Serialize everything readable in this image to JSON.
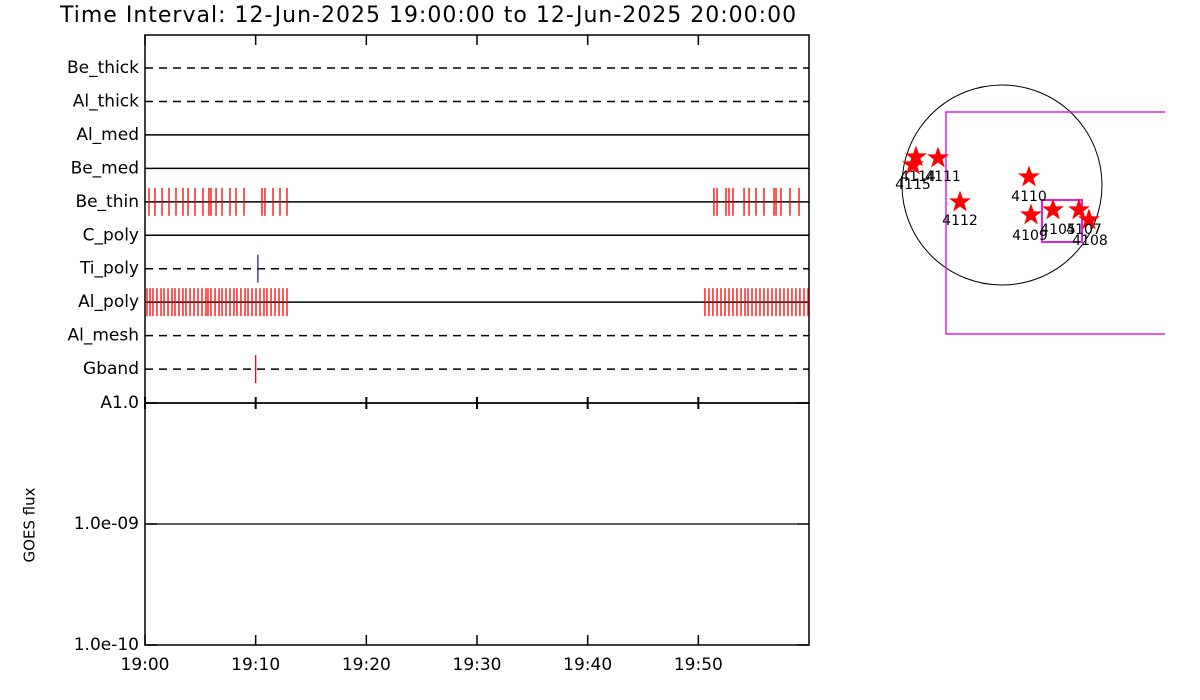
{
  "chart_data": [
    {
      "type": "timeline",
      "title": "Time Interval: 12-Jun-2025 19:00:00 to 12-Jun-2025 20:00:00",
      "xlim": [
        1140,
        1200
      ],
      "rows": [
        {
          "name": "Be_thick",
          "dashed": true,
          "color": "#ff0000",
          "events": []
        },
        {
          "name": "Al_thick",
          "dashed": true,
          "color": "#ff0000",
          "events": []
        },
        {
          "name": "Al_med",
          "dashed": false,
          "color": "#ff0000",
          "events": []
        },
        {
          "name": "Be_med",
          "dashed": false,
          "color": "#ff0000",
          "events": []
        },
        {
          "name": "Be_thin",
          "dashed": false,
          "color": "#ff0000",
          "events": [
            1140.36,
            1140.9,
            1141.54,
            1142.17,
            1142.8,
            1143.43,
            1143.89,
            1144.52,
            1145.24,
            1145.78,
            1145.96,
            1146.42,
            1146.96,
            1147.68,
            1148.22,
            1148.95,
            1150.57,
            1150.84,
            1151.57,
            1152.2,
            1152.83,
            1191.41,
            1191.69,
            1192.5,
            1192.77,
            1193.13,
            1194.13,
            1194.58,
            1195.21,
            1195.93,
            1196.84,
            1197.02,
            1197.47,
            1198.28,
            1199.1
          ]
        },
        {
          "name": "C_poly",
          "dashed": false,
          "color": "#ff0000",
          "events": []
        },
        {
          "name": "Ti_poly",
          "dashed": true,
          "color": "#2222aa",
          "events": [
            1150.2
          ]
        },
        {
          "name": "Al_poly",
          "dashed": false,
          "color": "#ff0000",
          "events": [
            1140.18,
            1140.45,
            1140.72,
            1141.08,
            1141.45,
            1141.72,
            1142.08,
            1142.44,
            1142.71,
            1143.07,
            1143.43,
            1143.7,
            1144.07,
            1144.43,
            1144.79,
            1145.15,
            1145.51,
            1145.69,
            1145.96,
            1146.33,
            1146.69,
            1146.96,
            1147.32,
            1147.68,
            1148.04,
            1148.31,
            1148.67,
            1149.04,
            1149.31,
            1149.67,
            1150.03,
            1150.39,
            1150.75,
            1151.02,
            1151.39,
            1151.75,
            1152.11,
            1152.47,
            1152.83,
            1190.6,
            1190.96,
            1191.32,
            1191.69,
            1192.05,
            1192.41,
            1192.77,
            1193.13,
            1193.49,
            1193.86,
            1194.22,
            1194.49,
            1194.85,
            1195.21,
            1195.57,
            1195.93,
            1196.29,
            1196.66,
            1197.02,
            1197.38,
            1197.74,
            1198.1,
            1198.46,
            1198.82,
            1199.18,
            1199.55,
            1199.91
          ]
        },
        {
          "name": "Al_mesh",
          "dashed": true,
          "color": "#ff0000",
          "events": []
        },
        {
          "name": "Gband",
          "dashed": true,
          "color": "#ff0000",
          "events": [
            1150.0
          ]
        }
      ]
    },
    {
      "type": "line",
      "ylabel": "GOES flux",
      "log_y": true,
      "xlim": [
        1140,
        1200
      ],
      "xticks": [
        {
          "value": 1140,
          "label": "19:00"
        },
        {
          "value": 1150,
          "label": "19:10"
        },
        {
          "value": 1160,
          "label": "19:20"
        },
        {
          "value": 1170,
          "label": "19:30"
        },
        {
          "value": 1180,
          "label": "19:40"
        },
        {
          "value": 1190,
          "label": "19:50"
        }
      ],
      "ylim": [
        1e-10,
        1e-08
      ],
      "yticks": [
        {
          "value": 1e-10,
          "label": "1.0e-10"
        },
        {
          "value": 1e-09,
          "label": "1.0e-09"
        },
        {
          "value": 1e-08,
          "label": "A1.0"
        }
      ],
      "x": [
        1140.3,
        1198.9
      ],
      "series": [
        {
          "color": "#000000",
          "values": [
            1e-09,
            1e-09
          ]
        }
      ]
    },
    {
      "type": "map",
      "labels": [
        "4115",
        "4114",
        "4111",
        "4110",
        "4112",
        "4109",
        "4105",
        "4107",
        "4108"
      ]
    }
  ]
}
